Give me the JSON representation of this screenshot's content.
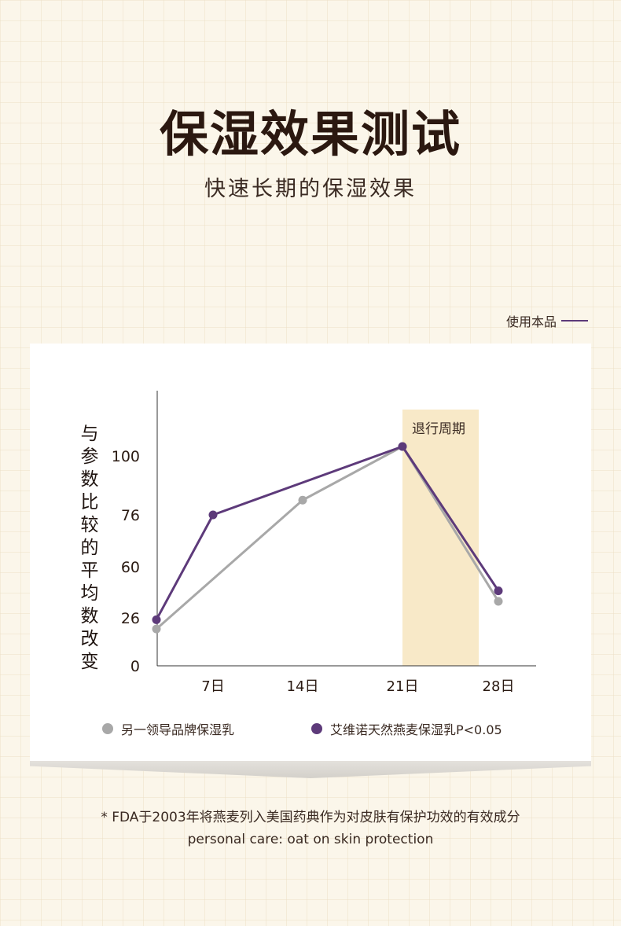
{
  "header": {
    "title": "保湿效果测试",
    "subtitle": "快速长期的保湿效果"
  },
  "top_legend": {
    "label": "使用本品"
  },
  "y_axis_label": [
    "与",
    "参",
    "数",
    "比",
    "较",
    "的",
    "平",
    "均",
    "数",
    "改",
    "变"
  ],
  "colors": {
    "gray": "#a8a8a8",
    "purple": "#5d3a7a",
    "band": "#f8e9c8"
  },
  "chart_data": {
    "type": "line",
    "x": [
      "0",
      "7日",
      "14日",
      "21日",
      "28日"
    ],
    "x_tick_labels": [
      "7日",
      "14日",
      "21日",
      "28日"
    ],
    "y_tick_labels": [
      "0",
      "26",
      "60",
      "76",
      "100"
    ],
    "series": [
      {
        "name": "另一领导品牌保湿乳",
        "values": [
          20,
          null,
          82,
          106,
          37
        ]
      },
      {
        "name": "艾维诺天然燕麦保湿乳P<0.05",
        "values": [
          25,
          76,
          null,
          106,
          44
        ]
      }
    ],
    "band": {
      "label": "退行周期",
      "from": "21日",
      "to": "28日"
    }
  },
  "legend": [
    {
      "label": "另一领导品牌保湿乳"
    },
    {
      "label": "艾维诺天然燕麦保湿乳P<0.05"
    }
  ],
  "footnote": {
    "line1": "* FDA于2003年将燕麦列入美国药典作为对皮肤有保护功效的有效成分",
    "line2": "personal care: oat on skin protection"
  }
}
